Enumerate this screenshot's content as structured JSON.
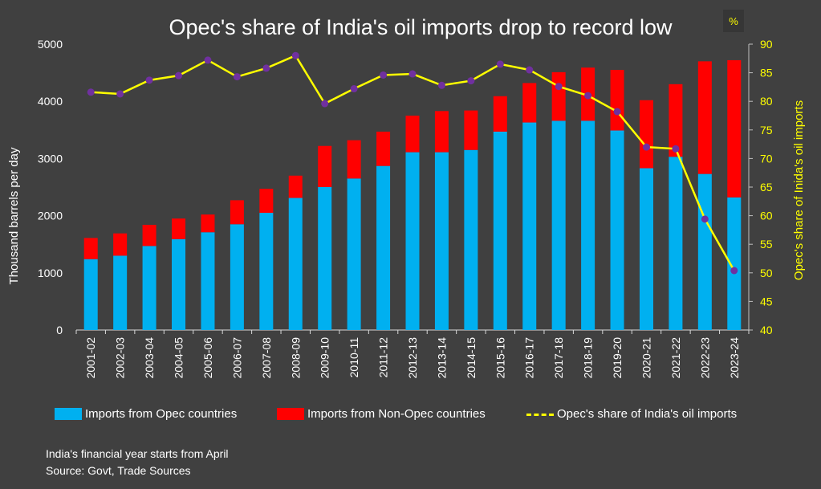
{
  "chart_data": {
    "type": "bar+line",
    "title": "Opec's share of India's oil imports drop to record low",
    "ylabel_left": "Thousand barrels per day",
    "ylabel_right": "Opec's share of Inida's oil imports",
    "right_unit_badge": "%",
    "ylim_left": [
      0,
      5000
    ],
    "ylim_right": [
      40,
      90
    ],
    "yticks_left": [
      "0",
      "1000",
      "2000",
      "3000",
      "4000",
      "5000"
    ],
    "yticks_right": [
      "40",
      "45",
      "50",
      "55",
      "60",
      "65",
      "70",
      "75",
      "80",
      "85",
      "90"
    ],
    "categories": [
      "2001-02",
      "2002-03",
      "2003-04",
      "2004-05",
      "2005-06",
      "2006-07",
      "2007-08",
      "2008-09",
      "2009-10",
      "2010-11",
      "2011-12",
      "2012-13",
      "2013-14",
      "2014-15",
      "2015-16",
      "2016-17",
      "2017-18",
      "2018-19",
      "2019-20",
      "2020-21",
      "2021-22",
      "2022-23",
      "2023-24"
    ],
    "series": [
      {
        "name": "Imports from Opec countries",
        "type": "bar-stacked",
        "color": "#00b0f0",
        "values": [
          1240,
          1300,
          1470,
          1590,
          1710,
          1850,
          2050,
          2310,
          2500,
          2650,
          2870,
          3110,
          3110,
          3150,
          3470,
          3630,
          3660,
          3660,
          3490,
          2830,
          3030,
          2730,
          2320
        ]
      },
      {
        "name": "Imports from Non-Opec countries",
        "type": "bar-stacked",
        "color": "#ff0000",
        "values": [
          370,
          390,
          370,
          360,
          310,
          420,
          420,
          390,
          720,
          670,
          600,
          640,
          720,
          690,
          620,
          690,
          850,
          930,
          1060,
          1190,
          1270,
          1970,
          2400
        ]
      },
      {
        "name": "Opec's share of India's oil imports",
        "type": "line",
        "axis": "right",
        "color": "#ffff00",
        "marker_color": "#7030a0",
        "values": [
          81.6,
          81.3,
          83.7,
          84.5,
          87.2,
          84.3,
          85.8,
          88.0,
          79.6,
          82.2,
          84.6,
          84.8,
          82.8,
          83.6,
          86.5,
          85.5,
          82.6,
          81.0,
          78.2,
          72.0,
          71.7,
          59.4,
          50.4
        ]
      }
    ]
  },
  "footnotes": {
    "line1": "India's financial year starts from April",
    "line2": "Source: Govt, Trade Sources"
  }
}
